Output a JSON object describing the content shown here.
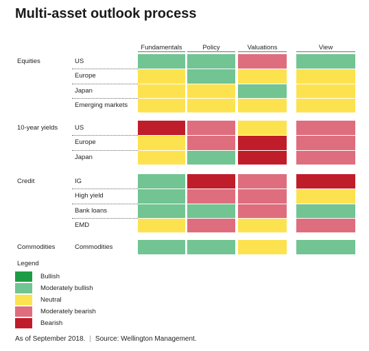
{
  "title": "Multi-asset outlook process",
  "chart_data": {
    "type": "table",
    "columns": [
      "Fundamentals",
      "Policy",
      "Valuations",
      "View"
    ],
    "groups": [
      {
        "name": "Equities",
        "rows": [
          {
            "label": "US",
            "values": [
              "Moderately bullish",
              "Moderately bullish",
              "Moderately bearish",
              "Moderately bullish"
            ]
          },
          {
            "label": "Europe",
            "values": [
              "Neutral",
              "Moderately bullish",
              "Neutral",
              "Neutral"
            ]
          },
          {
            "label": "Japan",
            "values": [
              "Neutral",
              "Neutral",
              "Moderately bullish",
              "Neutral"
            ]
          },
          {
            "label": "Emerging markets",
            "values": [
              "Neutral",
              "Neutral",
              "Neutral",
              "Neutral"
            ]
          }
        ]
      },
      {
        "name": "10-year yields",
        "rows": [
          {
            "label": "US",
            "values": [
              "Bearish",
              "Moderately bearish",
              "Neutral",
              "Moderately bearish"
            ]
          },
          {
            "label": "Europe",
            "values": [
              "Neutral",
              "Moderately bearish",
              "Bearish",
              "Moderately bearish"
            ]
          },
          {
            "label": "Japan",
            "values": [
              "Neutral",
              "Moderately bullish",
              "Bearish",
              "Moderately bearish"
            ]
          }
        ]
      },
      {
        "name": "Credit",
        "rows": [
          {
            "label": "IG",
            "values": [
              "Moderately bullish",
              "Bearish",
              "Moderately bearish",
              "Bearish"
            ]
          },
          {
            "label": "High yield",
            "values": [
              "Moderately bullish",
              "Moderately bearish",
              "Moderately bearish",
              "Neutral"
            ]
          },
          {
            "label": "Bank loans",
            "values": [
              "Moderately bullish",
              "Moderately bullish",
              "Moderately bearish",
              "Moderately bullish"
            ]
          },
          {
            "label": "EMD",
            "values": [
              "Neutral",
              "Moderately bearish",
              "Neutral",
              "Moderately bearish"
            ]
          }
        ]
      },
      {
        "name": "Commodities",
        "rows": [
          {
            "label": "Commodities",
            "values": [
              "Moderately bullish",
              "Moderately bullish",
              "Neutral",
              "Moderately bullish"
            ]
          }
        ]
      }
    ],
    "legend": {
      "title": "Legend",
      "position": "bottom-left",
      "items": [
        {
          "label": "Bullish",
          "color": "#1e9c45"
        },
        {
          "label": "Moderately bullish",
          "color": "#72c493"
        },
        {
          "label": "Neutral",
          "color": "#fde24f"
        },
        {
          "label": "Moderately bearish",
          "color": "#de6e7e"
        },
        {
          "label": "Bearish",
          "color": "#c01d2b"
        }
      ]
    }
  },
  "footer": {
    "date": "As of September 2018.",
    "source": "Source: Wellington Management."
  }
}
